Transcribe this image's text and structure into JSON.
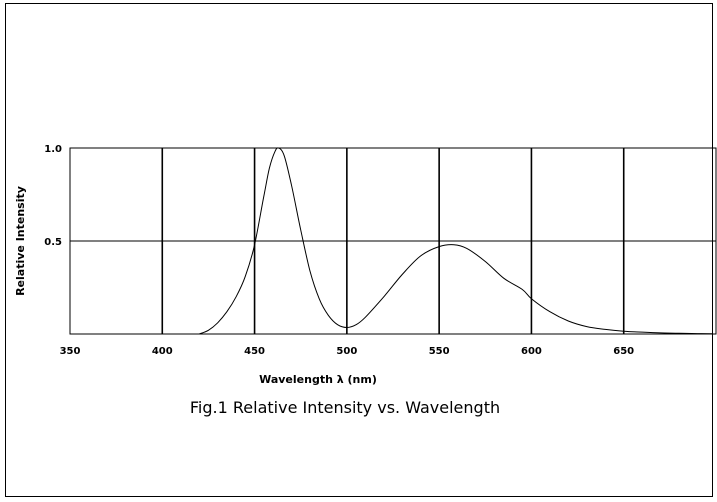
{
  "chart_data": {
    "type": "line",
    "title": "",
    "caption": "Fig.1 Relative Intensity vs. Wavelength",
    "xlabel": "Wavelength λ (nm)",
    "ylabel": "Relative Intensity",
    "xlim": [
      350,
      700
    ],
    "ylim": [
      0,
      1.0
    ],
    "x_ticks": [
      350,
      400,
      450,
      500,
      550,
      600,
      650
    ],
    "y_ticks": [
      0.5,
      1.0
    ],
    "y_tick_labels": [
      "0.5",
      "1.0"
    ],
    "grid": true,
    "legend": "none",
    "series": [
      {
        "x": [
          420,
          425,
          430,
          435,
          440,
          445,
          450,
          455,
          458,
          461,
          463,
          466,
          470,
          475,
          480,
          485,
          490,
          495,
          500,
          505,
          510,
          520,
          530,
          540,
          550,
          558,
          565,
          575,
          585,
          595,
          600,
          610,
          620,
          630,
          640,
          650,
          660,
          670,
          680,
          690,
          698
        ],
        "y": [
          0.0,
          0.02,
          0.06,
          0.12,
          0.2,
          0.31,
          0.48,
          0.74,
          0.89,
          0.98,
          1.0,
          0.96,
          0.8,
          0.56,
          0.34,
          0.19,
          0.1,
          0.05,
          0.035,
          0.05,
          0.09,
          0.2,
          0.32,
          0.42,
          0.47,
          0.48,
          0.46,
          0.39,
          0.3,
          0.24,
          0.19,
          0.12,
          0.07,
          0.04,
          0.025,
          0.015,
          0.01,
          0.006,
          0.004,
          0.002,
          0.001
        ]
      }
    ],
    "line_color": "#000000"
  }
}
